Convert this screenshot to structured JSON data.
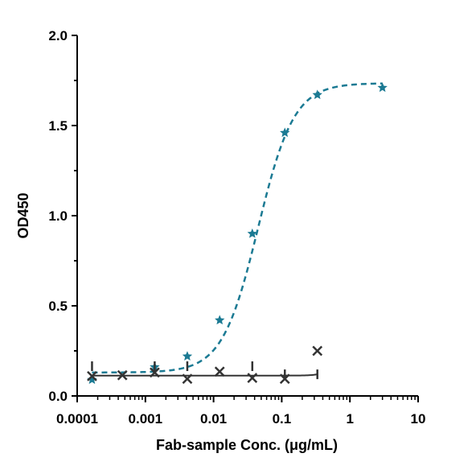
{
  "chart_data": {
    "type": "scatter",
    "title": "",
    "xlabel": "Fab-sample Conc. (μg/mL)",
    "ylabel": "OD450",
    "xscale": "log",
    "xlim": [
      0.0001,
      10
    ],
    "ylim": [
      0,
      2.0
    ],
    "x_tick_labels": [
      "0.0001",
      "0.001",
      "0.01",
      "0.1",
      "1",
      "10"
    ],
    "y_tick_labels": [
      "0.0",
      "0.5",
      "1.0",
      "1.5",
      "2.0"
    ],
    "grid": false,
    "legend": "none",
    "series": [
      {
        "marker": "star",
        "line_style": "dashed",
        "color": "#1b7a93",
        "x": [
          0.000165,
          0.00137,
          0.00412,
          0.0123,
          0.037,
          0.111,
          0.333,
          3.0
        ],
        "y": [
          0.09,
          0.16,
          0.22,
          0.42,
          0.9,
          1.46,
          1.67,
          1.71
        ],
        "fit_params": {
          "bottom": 0.13,
          "top": 1.735,
          "ec50": 0.045,
          "hill": 1.65
        }
      },
      {
        "marker": "x",
        "line_style": "solid",
        "color": "#333333",
        "x": [
          0.000165,
          0.00046,
          0.00137,
          0.00412,
          0.0123,
          0.037,
          0.111,
          0.333
        ],
        "y": [
          0.11,
          0.115,
          0.13,
          0.095,
          0.135,
          0.1,
          0.095,
          0.25
        ],
        "error_bar_x": [
          0.000165,
          0.00137,
          0.00412,
          0.037,
          0.111,
          0.333
        ],
        "error_bar_y": [
          0.165,
          0.165,
          0.165,
          0.165,
          0.12,
          0.12
        ],
        "fit_params": {
          "bottom": 0.113,
          "top": 2.0,
          "ec50": 1.0,
          "hill": 5.0
        }
      }
    ]
  }
}
